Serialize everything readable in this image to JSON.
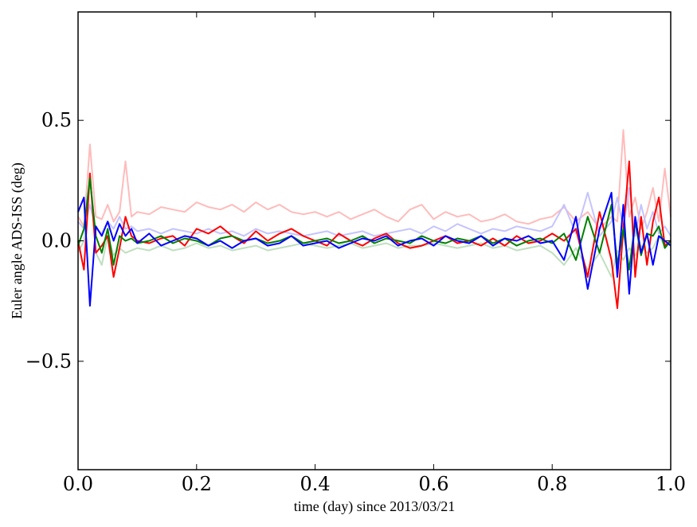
{
  "chart_data": {
    "type": "line",
    "title": "",
    "xlabel": "time (day) since 2013/03/21",
    "ylabel": "Euler angle ADS-ISS (deg)",
    "xlim": [
      0.0,
      1.0
    ],
    "ylim": [
      -0.95,
      0.95
    ],
    "xticks": [
      0.0,
      0.2,
      0.4,
      0.6,
      0.8,
      1.0
    ],
    "xtick_labels": [
      "0.0",
      "0.2",
      "0.4",
      "0.6",
      "0.8",
      "1.0"
    ],
    "yticks": [
      0.5,
      0.0,
      -0.5
    ],
    "ytick_labels": [
      "0.5",
      "0.0",
      "−0.5"
    ],
    "grid": false,
    "legend": "none",
    "x": [
      0.0,
      0.01,
      0.02,
      0.03,
      0.04,
      0.05,
      0.06,
      0.07,
      0.08,
      0.09,
      0.1,
      0.12,
      0.14,
      0.16,
      0.18,
      0.2,
      0.22,
      0.24,
      0.26,
      0.28,
      0.3,
      0.32,
      0.34,
      0.36,
      0.38,
      0.4,
      0.42,
      0.44,
      0.46,
      0.48,
      0.5,
      0.52,
      0.54,
      0.56,
      0.58,
      0.6,
      0.62,
      0.64,
      0.66,
      0.68,
      0.7,
      0.72,
      0.74,
      0.76,
      0.78,
      0.8,
      0.82,
      0.84,
      0.86,
      0.88,
      0.9,
      0.91,
      0.92,
      0.93,
      0.94,
      0.95,
      0.96,
      0.97,
      0.98,
      0.99,
      1.0
    ],
    "series": [
      {
        "color": "#ffbbbb",
        "width": 2,
        "values": [
          0.1,
          0.06,
          0.4,
          0.1,
          0.09,
          0.15,
          0.08,
          0.12,
          0.33,
          0.1,
          0.12,
          0.11,
          0.14,
          0.13,
          0.12,
          0.16,
          0.14,
          0.13,
          0.15,
          0.12,
          0.16,
          0.13,
          0.15,
          0.12,
          0.11,
          0.12,
          0.1,
          0.12,
          0.09,
          0.11,
          0.13,
          0.1,
          0.08,
          0.13,
          0.15,
          0.09,
          0.12,
          0.1,
          0.11,
          0.08,
          0.09,
          0.11,
          0.08,
          0.07,
          0.09,
          0.1,
          0.14,
          0.08,
          0.12,
          0.05,
          0.1,
          0.08,
          0.46,
          0.1,
          0.18,
          0.05,
          0.12,
          0.22,
          0.08,
          0.3,
          0.1
        ]
      },
      {
        "color": "#c4c4ff",
        "width": 2,
        "values": [
          0.08,
          0.05,
          0.15,
          0.05,
          0.03,
          0.08,
          0.05,
          0.1,
          0.05,
          0.06,
          0.04,
          0.05,
          0.03,
          0.05,
          0.04,
          0.03,
          0.05,
          0.03,
          0.04,
          0.02,
          0.05,
          0.03,
          0.04,
          0.03,
          0.02,
          0.03,
          0.04,
          0.02,
          0.03,
          0.04,
          0.02,
          0.03,
          0.04,
          0.05,
          0.03,
          0.06,
          0.04,
          0.07,
          0.05,
          0.03,
          0.05,
          0.04,
          0.06,
          0.05,
          0.04,
          0.06,
          0.15,
          0.03,
          0.2,
          0.02,
          0.08,
          0.18,
          0.05,
          0.22,
          0.02,
          0.15,
          0.05,
          0.12,
          0.03,
          0.06,
          0.02
        ]
      },
      {
        "color": "#bfdfbf",
        "width": 2,
        "values": [
          -0.05,
          0.0,
          0.28,
          -0.05,
          -0.1,
          0.02,
          -0.06,
          -0.03,
          -0.05,
          -0.04,
          -0.03,
          -0.04,
          -0.02,
          -0.04,
          -0.03,
          -0.01,
          -0.03,
          -0.02,
          -0.04,
          -0.03,
          -0.02,
          -0.04,
          -0.03,
          -0.02,
          -0.01,
          -0.02,
          -0.03,
          -0.02,
          -0.01,
          -0.03,
          -0.02,
          -0.01,
          -0.03,
          -0.02,
          -0.02,
          -0.01,
          -0.02,
          -0.03,
          -0.02,
          -0.01,
          -0.03,
          -0.02,
          -0.04,
          -0.03,
          -0.02,
          -0.05,
          -0.1,
          -0.03,
          -0.12,
          -0.05,
          -0.15,
          -0.04,
          -0.08,
          -0.03,
          -0.06,
          -0.02,
          -0.05,
          -0.03,
          0.02,
          -0.02,
          0.0
        ]
      },
      {
        "color": "#ff0000",
        "width": 2,
        "values": [
          0.0,
          -0.12,
          0.28,
          -0.05,
          -0.02,
          0.02,
          -0.15,
          -0.03,
          0.1,
          0.02,
          0.0,
          -0.01,
          0.01,
          0.02,
          -0.02,
          0.05,
          0.03,
          0.06,
          0.02,
          -0.01,
          0.04,
          0.0,
          0.03,
          0.05,
          0.02,
          0.0,
          -0.02,
          0.03,
          0.0,
          -0.02,
          0.01,
          0.03,
          -0.01,
          -0.03,
          -0.02,
          0.0,
          0.02,
          -0.01,
          0.0,
          -0.02,
          0.01,
          -0.02,
          0.02,
          -0.01,
          0.0,
          0.03,
          0.0,
          0.05,
          -0.15,
          0.12,
          -0.08,
          -0.28,
          0.05,
          0.33,
          -0.15,
          0.1,
          -0.1,
          0.08,
          0.18,
          -0.02,
          0.0
        ]
      },
      {
        "color": "#008000",
        "width": 2,
        "values": [
          -0.02,
          0.05,
          0.26,
          0.02,
          -0.05,
          0.05,
          -0.1,
          0.02,
          0.0,
          0.01,
          -0.01,
          0.0,
          0.02,
          -0.01,
          0.01,
          0.0,
          -0.02,
          0.01,
          0.02,
          0.0,
          0.01,
          -0.01,
          0.0,
          0.02,
          -0.01,
          0.0,
          0.01,
          -0.01,
          0.0,
          0.02,
          -0.01,
          0.01,
          0.0,
          -0.01,
          0.02,
          0.0,
          -0.01,
          0.01,
          0.0,
          0.02,
          -0.01,
          0.01,
          -0.02,
          0.0,
          0.01,
          -0.01,
          0.03,
          -0.08,
          0.1,
          -0.05,
          0.15,
          -0.1,
          0.05,
          -0.12,
          0.08,
          -0.06,
          0.03,
          0.02,
          0.06,
          -0.03,
          0.0
        ]
      },
      {
        "color": "#0000ff",
        "width": 2,
        "values": [
          0.12,
          0.18,
          -0.27,
          0.06,
          0.02,
          0.08,
          0.0,
          0.07,
          0.02,
          0.05,
          -0.01,
          0.03,
          -0.02,
          0.0,
          0.02,
          0.01,
          -0.02,
          0.0,
          -0.03,
          0.0,
          0.01,
          -0.02,
          -0.01,
          0.02,
          -0.02,
          -0.01,
          0.0,
          -0.03,
          -0.01,
          0.01,
          0.0,
          0.02,
          -0.02,
          0.0,
          0.01,
          -0.02,
          0.02,
          0.0,
          -0.01,
          0.02,
          -0.02,
          0.01,
          0.0,
          0.02,
          -0.01,
          0.0,
          -0.08,
          0.1,
          -0.2,
          0.05,
          0.2,
          -0.15,
          0.15,
          -0.22,
          0.1,
          -0.05,
          0.03,
          -0.1,
          0.02,
          0.0,
          -0.02
        ]
      }
    ]
  }
}
